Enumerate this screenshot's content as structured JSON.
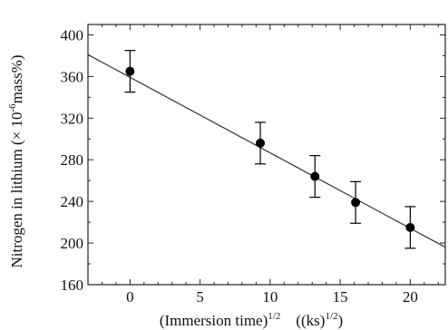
{
  "chart_data": {
    "type": "scatter",
    "title": "",
    "xlabel": {
      "main": "(Immersion time)",
      "main_sup": "1/2",
      "unit": "((ks)",
      "unit_sup": "1/2",
      "unit_close": ")"
    },
    "ylabel": {
      "pre": "Nitrogen in lithium (× 10",
      "sup": "-6",
      "post": "mass%)"
    },
    "xlim": [
      -3,
      22.5
    ],
    "ylim": [
      160,
      410
    ],
    "xticks": [
      0,
      5,
      10,
      15,
      20
    ],
    "yticks": [
      160,
      200,
      240,
      280,
      320,
      360,
      400
    ],
    "grid": false,
    "legend": "none",
    "series": [
      {
        "points": [
          {
            "x": 0,
            "y": 365,
            "err": 20
          },
          {
            "x": 9.3,
            "y": 296,
            "err": 20
          },
          {
            "x": 13.2,
            "y": 264,
            "err": 20
          },
          {
            "x": 16.1,
            "y": 239,
            "err": 20
          },
          {
            "x": 20.0,
            "y": 215,
            "err": 20
          }
        ]
      }
    ],
    "fit_line": {
      "type": "linear",
      "x": [
        -3,
        22.5
      ],
      "y": [
        381,
        196
      ]
    },
    "colors": {
      "marker": "#000000",
      "line": "#333333",
      "axis": "#222222"
    }
  }
}
